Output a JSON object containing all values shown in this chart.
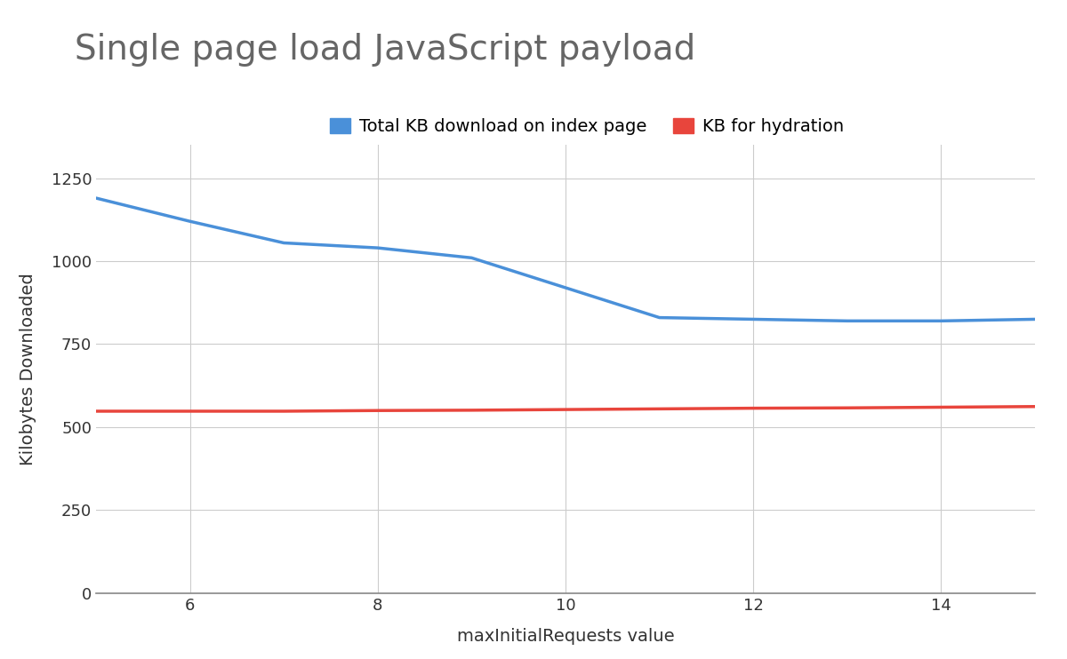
{
  "title": "Single page load JavaScript payload",
  "xlabel": "maxInitialRequests value",
  "ylabel": "Kilobytes Downloaded",
  "blue_x": [
    5,
    6,
    7,
    8,
    9,
    10,
    11,
    12,
    13,
    14,
    15
  ],
  "blue_y": [
    1190,
    1120,
    1055,
    1040,
    1010,
    920,
    830,
    825,
    820,
    820,
    825
  ],
  "red_x": [
    5,
    6,
    7,
    8,
    9,
    10,
    11,
    12,
    13,
    14,
    15
  ],
  "red_y": [
    548,
    548,
    548,
    550,
    551,
    553,
    555,
    557,
    558,
    560,
    562
  ],
  "blue_color": "#4a90d9",
  "red_color": "#e8453c",
  "blue_label": "Total KB download on index page",
  "red_label": "KB for hydration",
  "xlim": [
    5,
    15
  ],
  "ylim": [
    0,
    1350
  ],
  "yticks": [
    0,
    250,
    500,
    750,
    1000,
    1250
  ],
  "xticks": [
    6,
    8,
    10,
    12,
    14
  ],
  "title_fontsize": 28,
  "label_fontsize": 14,
  "legend_fontsize": 14,
  "tick_fontsize": 13,
  "line_width": 2.5,
  "background_color": "#ffffff",
  "grid_color": "#cccccc",
  "title_color": "#666666",
  "text_color": "#333333"
}
